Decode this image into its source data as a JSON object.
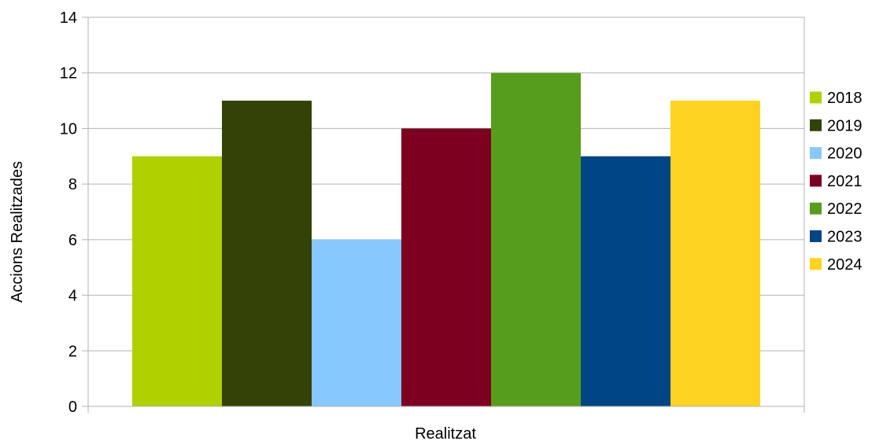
{
  "chart_data": {
    "type": "bar",
    "categories": [
      "Realitzat"
    ],
    "xlabel": "Realitzat",
    "ylabel": "Accions Realitzades",
    "ylim": [
      0,
      14
    ],
    "yticks": [
      0,
      2,
      4,
      6,
      8,
      10,
      12,
      14
    ],
    "grid": true,
    "legend_position": "right",
    "series": [
      {
        "name": "2018",
        "values": [
          9
        ],
        "color": "#b0d000"
      },
      {
        "name": "2019",
        "values": [
          11
        ],
        "color": "#334206"
      },
      {
        "name": "2020",
        "values": [
          6
        ],
        "color": "#87c8ff"
      },
      {
        "name": "2021",
        "values": [
          10
        ],
        "color": "#7e0021"
      },
      {
        "name": "2022",
        "values": [
          12
        ],
        "color": "#579d1c"
      },
      {
        "name": "2023",
        "values": [
          9
        ],
        "color": "#004586"
      },
      {
        "name": "2024",
        "values": [
          11
        ],
        "color": "#ffd320"
      }
    ]
  }
}
